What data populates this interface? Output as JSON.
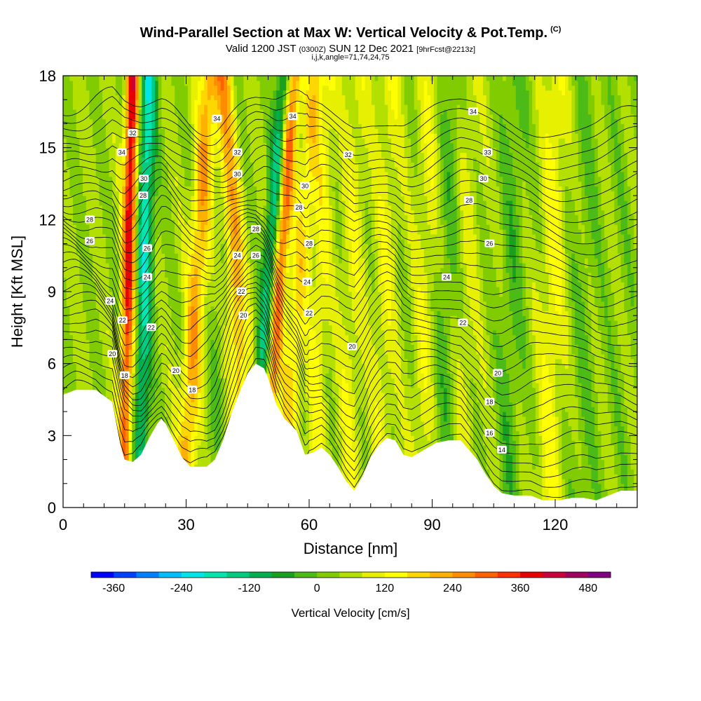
{
  "header": {
    "title": "Wind-Parallel Section at Max W: Vertical Velocity & Pot.Temp.",
    "copyright": "(C)",
    "valid_prefix": "Valid 1200 JST",
    "valid_zulu": "(0300Z)",
    "valid_date": "SUN 12 Dec 2021",
    "forecast": "[9hrFcst@2213z]",
    "indices": "i,j,k,angle=71,74,24,75"
  },
  "chart_data": {
    "type": "heatmap",
    "xlabel": "Distance [nm]",
    "ylabel": "Height [Kft MSL]",
    "xlim": [
      0,
      140
    ],
    "ylim": [
      0,
      18
    ],
    "xticks": [
      0,
      30,
      60,
      90,
      120
    ],
    "yticks": [
      0,
      3,
      6,
      9,
      12,
      15,
      18
    ],
    "colorbar": {
      "title": "Vertical Velocity [cm/s]",
      "ticks": [
        -360,
        -240,
        -120,
        0,
        120,
        240,
        360,
        480
      ],
      "range": [
        -400,
        520
      ],
      "step": 40,
      "colors": [
        "#0000ff",
        "#0040ff",
        "#0080ff",
        "#00bfff",
        "#00e6e6",
        "#00e6b0",
        "#00cc80",
        "#00b050",
        "#1aa020",
        "#4cbb17",
        "#80cc00",
        "#b3e000",
        "#e6f000",
        "#ffff00",
        "#ffd700",
        "#ffb000",
        "#ff8c00",
        "#ff6000",
        "#ff3000",
        "#e60000",
        "#c8003c",
        "#a00060",
        "#800080"
      ]
    },
    "terrain": [
      [
        0,
        4.7
      ],
      [
        3,
        4.9
      ],
      [
        8,
        4.9
      ],
      [
        12,
        4.4
      ],
      [
        14,
        2.6
      ],
      [
        15,
        2.0
      ],
      [
        17,
        1.9
      ],
      [
        19,
        2.2
      ],
      [
        21,
        2.9
      ],
      [
        23,
        3.5
      ],
      [
        24,
        3.7
      ],
      [
        25,
        3.5
      ],
      [
        27,
        2.8
      ],
      [
        29,
        2.1
      ],
      [
        31,
        1.7
      ],
      [
        35,
        1.7
      ],
      [
        37,
        2.0
      ],
      [
        39,
        2.8
      ],
      [
        41,
        3.9
      ],
      [
        43,
        4.8
      ],
      [
        45,
        5.6
      ],
      [
        47,
        6.0
      ],
      [
        49,
        5.8
      ],
      [
        50,
        5.4
      ],
      [
        52,
        4.3
      ],
      [
        54,
        3.7
      ],
      [
        57,
        3.2
      ],
      [
        59,
        2.2
      ],
      [
        61,
        2.3
      ],
      [
        63,
        2.5
      ],
      [
        65,
        2.2
      ],
      [
        67,
        1.7
      ],
      [
        69,
        1.1
      ],
      [
        71,
        0.7
      ],
      [
        73,
        1.3
      ],
      [
        75,
        2.1
      ],
      [
        77,
        2.6
      ],
      [
        79,
        2.9
      ],
      [
        81,
        2.8
      ],
      [
        83,
        2.2
      ],
      [
        85,
        2.1
      ],
      [
        87,
        2.3
      ],
      [
        89,
        2.5
      ],
      [
        91,
        2.7
      ],
      [
        94,
        2.8
      ],
      [
        97,
        2.8
      ],
      [
        99,
        2.4
      ],
      [
        101,
        2.0
      ],
      [
        103,
        1.4
      ],
      [
        105,
        0.9
      ],
      [
        107,
        0.6
      ],
      [
        110,
        0.5
      ],
      [
        114,
        0.5
      ],
      [
        117,
        0.3
      ],
      [
        121,
        0.3
      ],
      [
        124,
        0.4
      ],
      [
        127,
        0.4
      ],
      [
        130,
        0.3
      ],
      [
        133,
        0.5
      ],
      [
        136,
        0.7
      ],
      [
        140,
        0.7
      ]
    ],
    "updraft_bands": [
      {
        "x0": 15.5,
        "tilt": 0.12,
        "amp": 360,
        "width": 1.6
      },
      {
        "x0": 19.5,
        "tilt": 0.1,
        "amp": -240,
        "width": 2.0
      },
      {
        "x0": 31.5,
        "tilt": 0.35,
        "amp": 180,
        "width": 2.4
      },
      {
        "x0": 37.5,
        "tilt": 0.35,
        "amp": -40,
        "width": 2.2
      },
      {
        "x0": 43.0,
        "tilt": -0.3,
        "amp": 200,
        "width": 2.4
      },
      {
        "x0": 49.0,
        "tilt": 0.45,
        "amp": -300,
        "width": 2.0
      },
      {
        "x0": 51.0,
        "tilt": 0.4,
        "amp": 360,
        "width": 2.0
      },
      {
        "x0": 56.0,
        "tilt": 0.45,
        "amp": 120,
        "width": 2.2
      },
      {
        "x0": 62.0,
        "tilt": 0.2,
        "amp": 80,
        "width": 2.4
      },
      {
        "x0": 70.0,
        "tilt": 0.15,
        "amp": 60,
        "width": 3.0
      },
      {
        "x0": 78.0,
        "tilt": 0.15,
        "amp": 60,
        "width": 3.0
      },
      {
        "x0": 88.0,
        "tilt": 0.15,
        "amp": 60,
        "width": 3.0
      },
      {
        "x0": 93.0,
        "tilt": 0.15,
        "amp": -60,
        "width": 3.0
      },
      {
        "x0": 98.0,
        "tilt": 0.1,
        "amp": 40,
        "width": 3.0
      },
      {
        "x0": 109.0,
        "tilt": 0.1,
        "amp": -60,
        "width": 3.0
      },
      {
        "x0": 119.0,
        "tilt": 0.1,
        "amp": 80,
        "width": 3.0
      },
      {
        "x0": 127.0,
        "tilt": 0.05,
        "amp": -40,
        "width": 3.5
      },
      {
        "x0": 136.0,
        "tilt": 0.05,
        "amp": -20,
        "width": 4.0
      }
    ],
    "isentrope_labels": [
      {
        "x": 6.5,
        "y": 12.0,
        "text": "28"
      },
      {
        "x": 6.5,
        "y": 11.1,
        "text": "26"
      },
      {
        "x": 11.5,
        "y": 8.6,
        "text": "24"
      },
      {
        "x": 12.0,
        "y": 6.4,
        "text": "20"
      },
      {
        "x": 14.5,
        "y": 7.8,
        "text": "22"
      },
      {
        "x": 15.0,
        "y": 5.5,
        "text": "18"
      },
      {
        "x": 14.3,
        "y": 14.8,
        "text": "34"
      },
      {
        "x": 17.0,
        "y": 15.6,
        "text": "32"
      },
      {
        "x": 19.7,
        "y": 13.7,
        "text": "30"
      },
      {
        "x": 19.5,
        "y": 13.0,
        "text": "28"
      },
      {
        "x": 20.5,
        "y": 10.8,
        "text": "26"
      },
      {
        "x": 20.5,
        "y": 9.6,
        "text": "24"
      },
      {
        "x": 21.5,
        "y": 7.5,
        "text": "22"
      },
      {
        "x": 27.5,
        "y": 5.7,
        "text": "20"
      },
      {
        "x": 31.5,
        "y": 4.9,
        "text": "18"
      },
      {
        "x": 37.5,
        "y": 16.2,
        "text": "34"
      },
      {
        "x": 42.5,
        "y": 14.8,
        "text": "32"
      },
      {
        "x": 42.5,
        "y": 13.9,
        "text": "30"
      },
      {
        "x": 47.0,
        "y": 11.6,
        "text": "28"
      },
      {
        "x": 42.5,
        "y": 10.5,
        "text": "24"
      },
      {
        "x": 47.0,
        "y": 10.5,
        "text": "26"
      },
      {
        "x": 43.5,
        "y": 9.0,
        "text": "22"
      },
      {
        "x": 44.0,
        "y": 8.0,
        "text": "20"
      },
      {
        "x": 56.0,
        "y": 16.3,
        "text": "34"
      },
      {
        "x": 59.0,
        "y": 13.4,
        "text": "30"
      },
      {
        "x": 57.5,
        "y": 12.5,
        "text": "28"
      },
      {
        "x": 60.0,
        "y": 11.0,
        "text": "28"
      },
      {
        "x": 59.5,
        "y": 9.4,
        "text": "24"
      },
      {
        "x": 60.0,
        "y": 8.1,
        "text": "22"
      },
      {
        "x": 69.5,
        "y": 14.7,
        "text": "32"
      },
      {
        "x": 70.5,
        "y": 6.7,
        "text": "20"
      },
      {
        "x": 100.0,
        "y": 16.5,
        "text": "34"
      },
      {
        "x": 103.5,
        "y": 14.8,
        "text": "33"
      },
      {
        "x": 102.5,
        "y": 13.7,
        "text": "30"
      },
      {
        "x": 99.0,
        "y": 12.8,
        "text": "28"
      },
      {
        "x": 104.0,
        "y": 11.0,
        "text": "26"
      },
      {
        "x": 93.5,
        "y": 9.6,
        "text": "24"
      },
      {
        "x": 97.5,
        "y": 7.7,
        "text": "22"
      },
      {
        "x": 106.0,
        "y": 5.6,
        "text": "20"
      },
      {
        "x": 104.0,
        "y": 4.4,
        "text": "18"
      },
      {
        "x": 104.0,
        "y": 3.1,
        "text": "16"
      },
      {
        "x": 107.0,
        "y": 2.4,
        "text": "14"
      }
    ]
  }
}
